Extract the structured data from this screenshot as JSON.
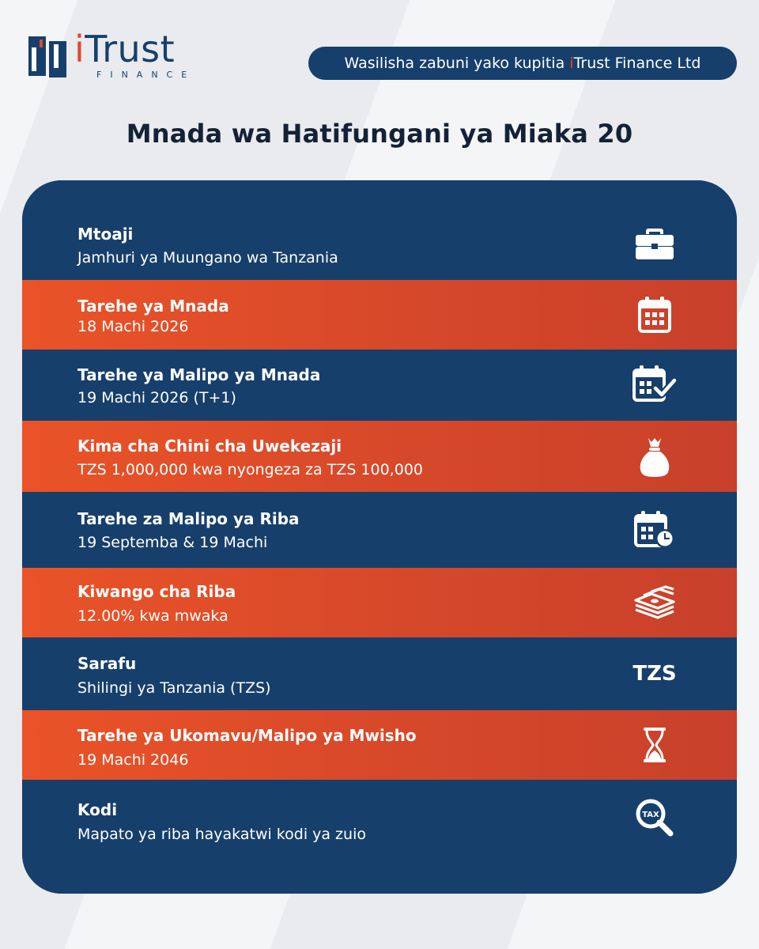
{
  "brand": {
    "name_i": "i",
    "name_rest": "Trust",
    "sub": "FINANCE"
  },
  "header": {
    "pill_before": "Wasilisha zabuni yako kupitia ",
    "pill_i": "i",
    "pill_after": "Trust Finance Ltd"
  },
  "page_title": "Mnada wa Hatifungani ya Miaka 20",
  "colors": {
    "navy": "#173f6b",
    "orange": "#e0492a"
  },
  "rows": [
    {
      "label": "Mtoaji",
      "value": "Jamhuri ya Muungano wa Tanzania",
      "icon": "briefcase-icon"
    },
    {
      "label": "Tarehe ya Mnada",
      "value": "18 Machi 2026",
      "icon": "calendar-icon"
    },
    {
      "label": "Tarehe ya Malipo ya Mnada",
      "value": "19 Machi 2026 (T+1)",
      "icon": "calendar-check-icon"
    },
    {
      "label": "Kima cha Chini cha Uwekezaji",
      "value": "TZS 1,000,000 kwa nyongeza za TZS 100,000",
      "icon": "money-bag-icon"
    },
    {
      "label": "Tarehe za Malipo ya Riba",
      "value": "19 Septemba & 19 Machi",
      "icon": "calendar-clock-icon"
    },
    {
      "label": "Kiwango cha Riba",
      "value": "12.00% kwa mwaka",
      "icon": "cash-stack-icon"
    },
    {
      "label": "Sarafu",
      "value": "Shilingi ya Tanzania (TZS)",
      "icon": "currency-text-icon",
      "icon_text": "TZS"
    },
    {
      "label": "Tarehe ya Ukomavu/Malipo ya Mwisho",
      "value": "19 Machi 2046",
      "icon": "hourglass-icon"
    },
    {
      "label": "Kodi",
      "value": "Mapato ya riba hayakatwi kodi ya zuio",
      "icon": "tax-search-icon",
      "icon_text": "TAX"
    }
  ]
}
